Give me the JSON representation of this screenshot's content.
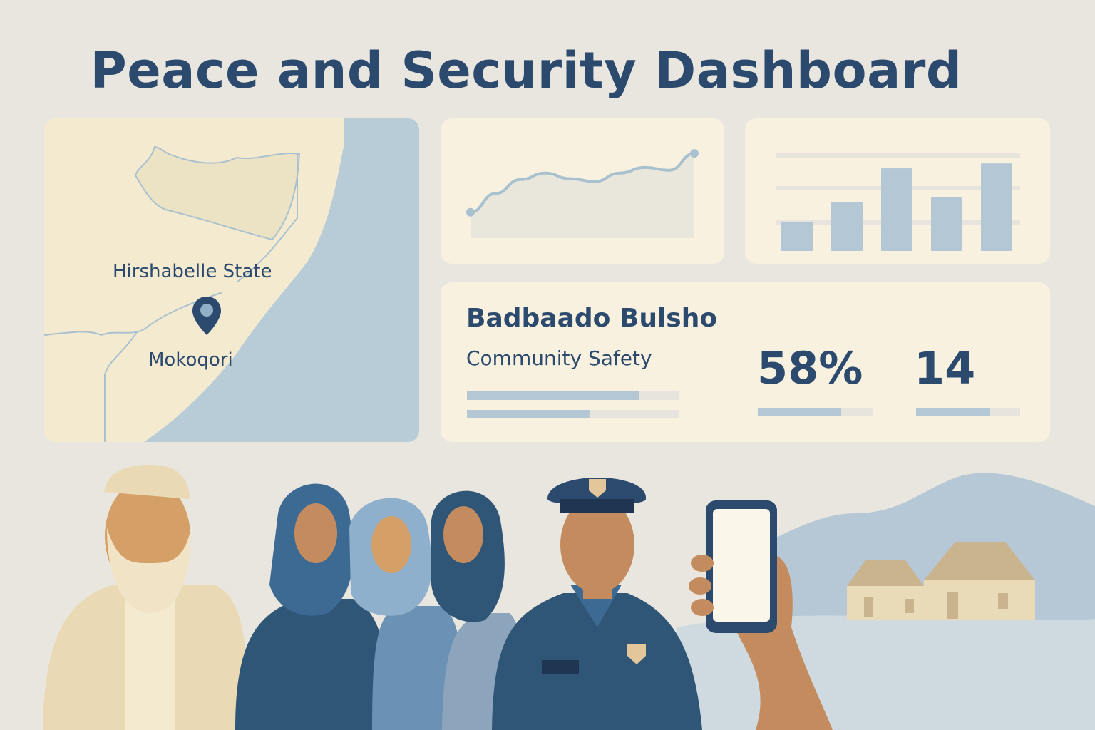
{
  "title": "Peace and Security Dashboard",
  "map": {
    "region": "Hirshabelle State",
    "town": "Mokoqori"
  },
  "line_chart": {
    "type": "line",
    "points": [
      2,
      4,
      5.5,
      6.2,
      5.6,
      5.3,
      6.2,
      6.8,
      6.5,
      8.3
    ]
  },
  "bar_chart": {
    "type": "bar",
    "values": [
      3,
      5,
      8.5,
      5.5,
      9
    ]
  },
  "stats": {
    "program_name": "Badbaado Bulsho",
    "program_subtitle": "Community Safety",
    "progress_left": [
      0.81,
      0.58
    ],
    "percent_label": "58%",
    "percent_value": 0.72,
    "count_label": "14",
    "count_value": 0.71
  },
  "colors": {
    "primary": "#2c4a6e",
    "accent": "#b3c7d4",
    "card": "#f8f1e0",
    "background": "#e8e6df"
  }
}
